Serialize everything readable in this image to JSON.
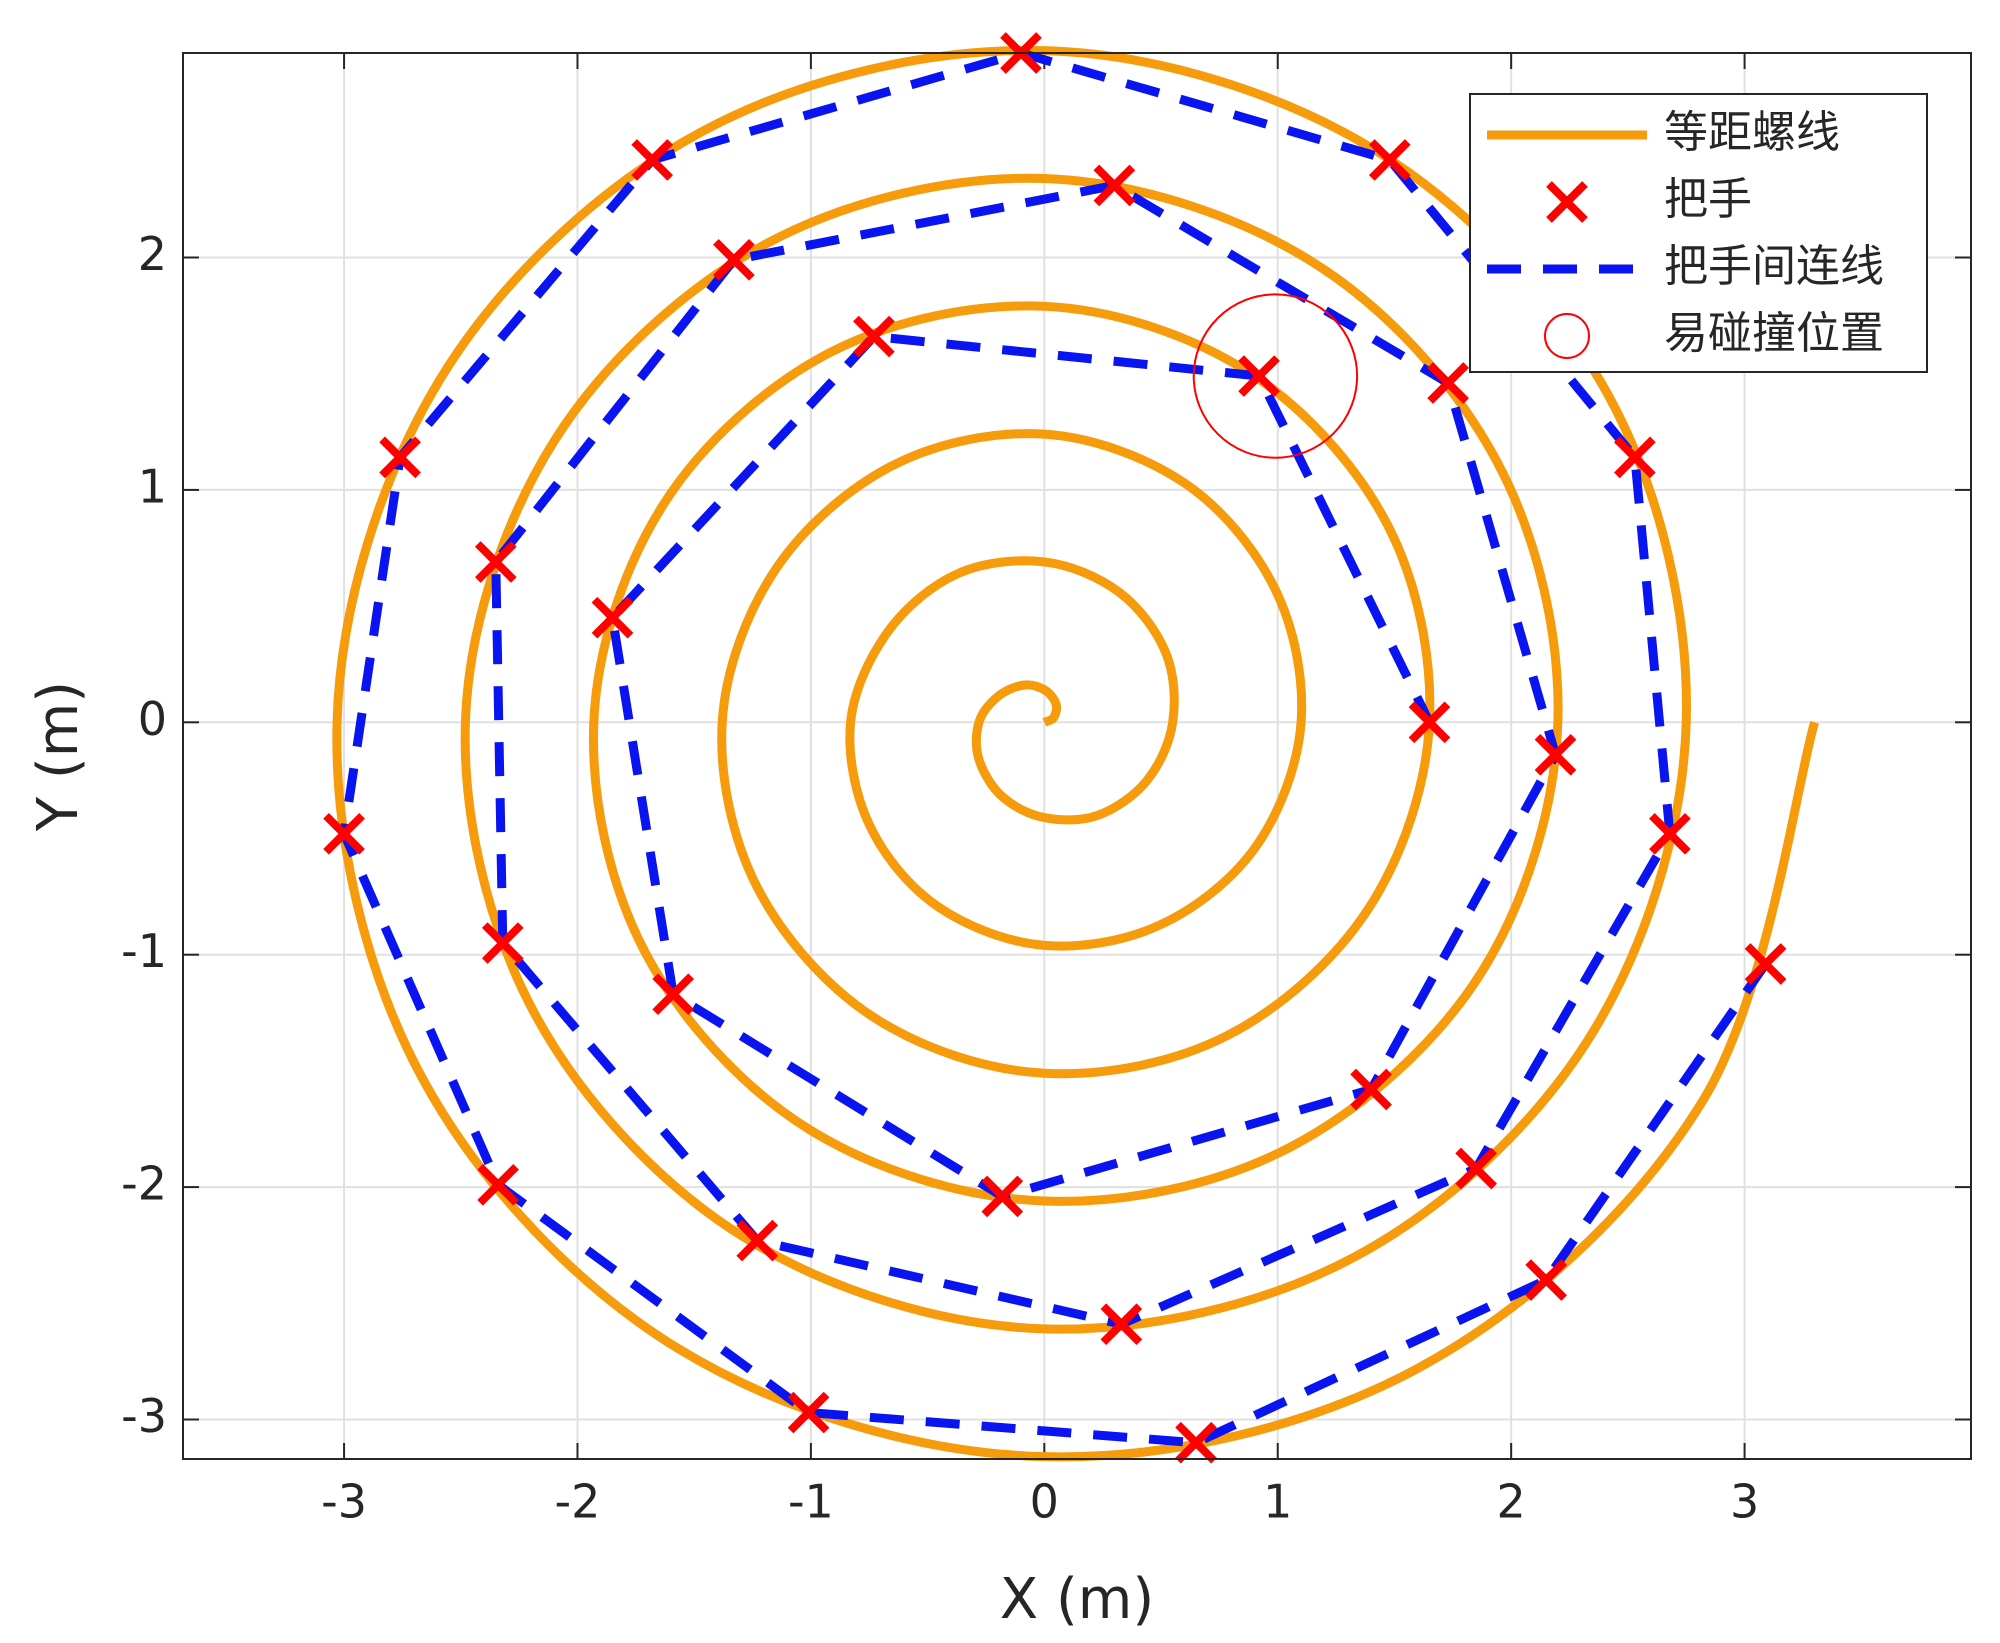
{
  "chart_data": {
    "type": "line",
    "xlabel": "X (m)",
    "ylabel": "Y (m)",
    "xlim": [
      -3.69,
      3.97
    ],
    "ylim": [
      -3.17,
      2.88
    ],
    "xticks": [
      -3,
      -2,
      -1,
      0,
      1,
      2,
      3
    ],
    "yticks": [
      -3,
      -2,
      -1,
      0,
      1,
      2
    ],
    "grid": true,
    "legend": "upper right",
    "series": [
      {
        "name": "等距螺线",
        "type": "line",
        "color": "#f59b0c",
        "x": [
          0,
          0.04,
          0.05,
          0,
          -0.09,
          -0.2,
          -0.28,
          -0.28,
          -0.18,
          0,
          0.23,
          0.44,
          0.55,
          0.52,
          0.32,
          0,
          -0.37,
          -0.67,
          -0.83,
          -0.75,
          -0.46,
          0,
          0.5,
          0.91,
          1.1,
          0.99,
          0.6,
          0,
          -0.64,
          -1.15,
          -1.38,
          -1.23,
          -0.73,
          0,
          0.78,
          1.39,
          1.65,
          1.47,
          0.87,
          0,
          -0.92,
          -1.63,
          -1.93,
          -1.71,
          -1.01,
          0,
          1.05,
          1.87,
          2.2,
          1.94,
          1.15,
          0,
          -1.19,
          -2.1,
          -2.48,
          -2.18,
          -1.28,
          0,
          1.33,
          2.34,
          2.75,
          2.42,
          1.42,
          0,
          -1.47,
          -2.58,
          -3.03,
          -2.66,
          -1.56,
          0,
          1.6,
          2.82,
          3.3
        ],
        "y": [
          0,
          0.02,
          0.08,
          0.14,
          0.16,
          0.11,
          0,
          -0.16,
          -0.32,
          -0.41,
          -0.4,
          -0.25,
          0,
          0.3,
          0.56,
          0.69,
          0.64,
          0.39,
          0,
          -0.44,
          -0.79,
          -0.96,
          -0.87,
          -0.53,
          0,
          0.57,
          1.03,
          1.24,
          1.11,
          0.66,
          0,
          -0.71,
          -1.27,
          -1.51,
          -1.35,
          -0.8,
          0,
          0.85,
          1.51,
          1.79,
          1.59,
          0.94,
          0,
          -0.99,
          -1.75,
          -2.06,
          -1.83,
          -1.08,
          0,
          1.12,
          1.98,
          2.34,
          2.06,
          1.21,
          0,
          -1.26,
          -2.22,
          -2.61,
          -2.3,
          -1.35,
          0,
          1.4,
          2.46,
          2.89,
          2.54,
          1.49,
          0,
          -1.54,
          -2.7,
          -3.16,
          -2.78,
          -1.63,
          0
        ]
      },
      {
        "name": "把手",
        "type": "scatter",
        "color": "#ff0000",
        "x": [
          3.09,
          2.15,
          0.65,
          -1.01,
          -2.34,
          -3.0,
          -2.76,
          -1.68,
          -0.1,
          1.48,
          2.53,
          2.68,
          1.85,
          0.33,
          -1.23,
          -2.32,
          -2.35,
          -1.33,
          0.3,
          1.73,
          2.19,
          1.4,
          -0.18,
          -1.59,
          -1.85,
          -0.73,
          0.92,
          1.65
        ],
        "y": [
          -1.04,
          -2.4,
          -3.1,
          -2.97,
          -1.99,
          -0.48,
          1.14,
          2.42,
          2.88,
          2.42,
          1.14,
          -0.48,
          -1.92,
          -2.59,
          -2.23,
          -0.95,
          0.69,
          1.99,
          2.31,
          1.46,
          -0.14,
          -1.58,
          -2.04,
          -1.17,
          0.45,
          1.66,
          1.49,
          0.0
        ]
      },
      {
        "name": "把手间连线",
        "type": "dashed",
        "color": "#0a14f0",
        "x": [
          3.09,
          2.15,
          0.65,
          -1.01,
          -2.34,
          -3.0,
          -2.76,
          -1.68,
          -0.1,
          1.48,
          2.53,
          2.68,
          1.85,
          0.33,
          -1.23,
          -2.32,
          -2.35,
          -1.33,
          0.3,
          1.73,
          2.19,
          1.4,
          -0.18,
          -1.59,
          -1.85,
          -0.73,
          0.92,
          1.65
        ],
        "y": [
          -1.04,
          -2.4,
          -3.1,
          -2.97,
          -1.99,
          -0.48,
          1.14,
          2.42,
          2.88,
          2.42,
          1.14,
          -0.48,
          -1.92,
          -2.59,
          -2.23,
          -0.95,
          0.69,
          1.99,
          2.31,
          1.46,
          -0.14,
          -1.58,
          -2.04,
          -1.17,
          0.45,
          1.66,
          1.49,
          0.0
        ]
      },
      {
        "name": "易碰撞位置",
        "type": "circle",
        "color": "#ff0000",
        "x": [
          0.99
        ],
        "y": [
          1.49
        ],
        "radius": [
          0.35
        ]
      }
    ]
  }
}
